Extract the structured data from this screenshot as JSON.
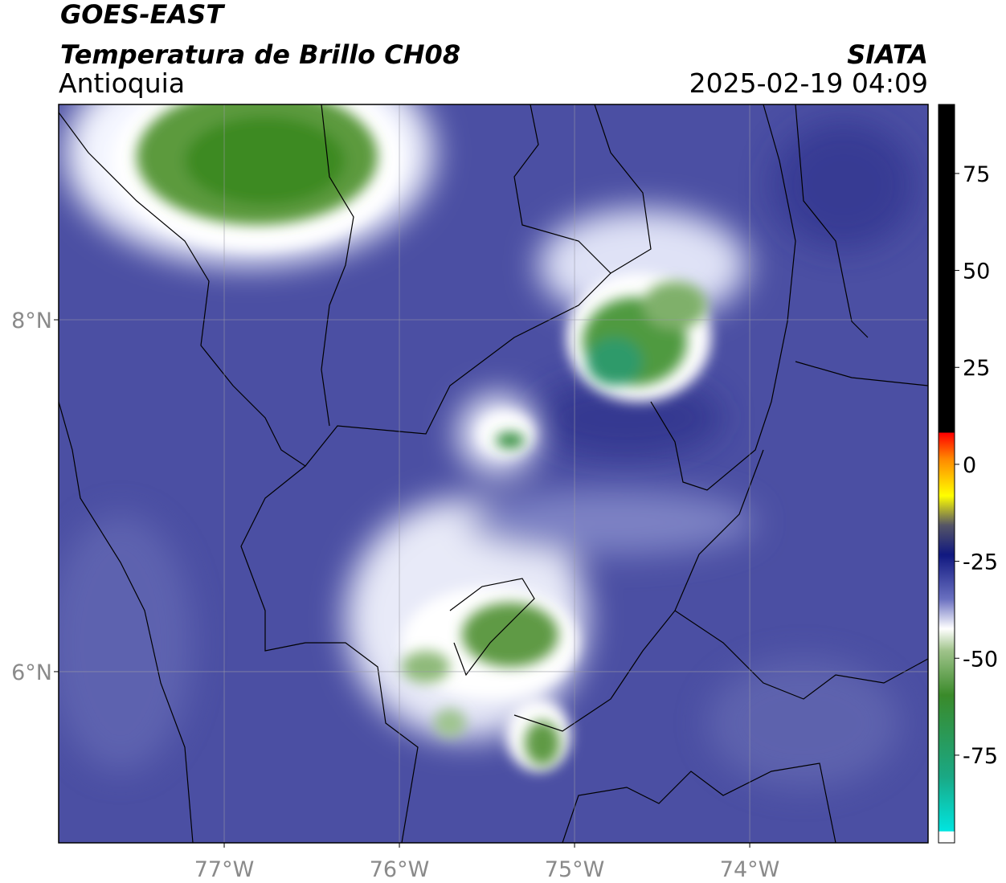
{
  "header": {
    "title": "GOES-EAST",
    "subtitle": "Temperatura de Brillo CH08",
    "region": "Antioquia",
    "source": "SIATA",
    "datetime": "2025-02-19 04:09"
  },
  "map": {
    "xlim": [
      -77.945,
      -72.982
    ],
    "ylim": [
      5.027,
      9.224
    ],
    "xticks": [
      {
        "value": -77,
        "label": "77°W"
      },
      {
        "value": -76,
        "label": "76°W"
      },
      {
        "value": -75,
        "label": "75°W"
      },
      {
        "value": -74,
        "label": "74°W"
      }
    ],
    "yticks": [
      {
        "value": 8,
        "label": "8°N"
      },
      {
        "value": 6,
        "label": "6°N"
      }
    ]
  },
  "colorbar": {
    "lim": [
      -97.6,
      92.8
    ],
    "ticks": [
      75,
      50,
      25,
      0,
      -25,
      -50,
      -75
    ]
  }
}
